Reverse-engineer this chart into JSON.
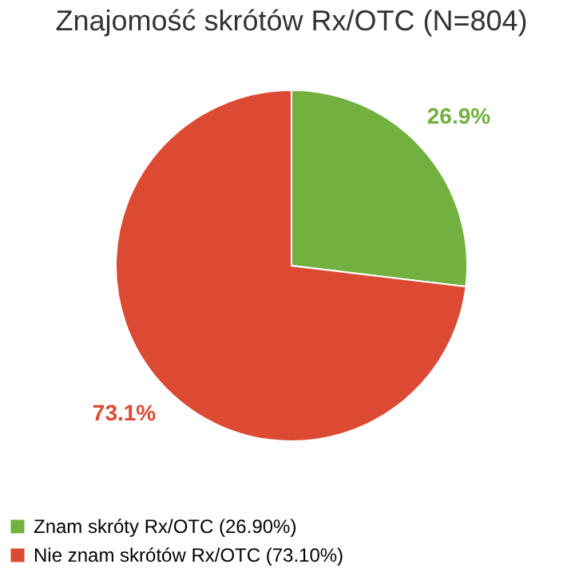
{
  "chart_data": {
    "type": "pie",
    "title": "Znajomość skrótów Rx/OTC (N=804)",
    "categories": [
      "Znam skróty Rx/OTC (26.90%)",
      "Nie znam skrótów Rx/OTC (73.10%)"
    ],
    "values": [
      26.9,
      73.1
    ],
    "colors": [
      "#72b03f",
      "#dc4a33"
    ],
    "value_labels": [
      "26.9%",
      "73.1%"
    ],
    "legend": "bottom"
  }
}
